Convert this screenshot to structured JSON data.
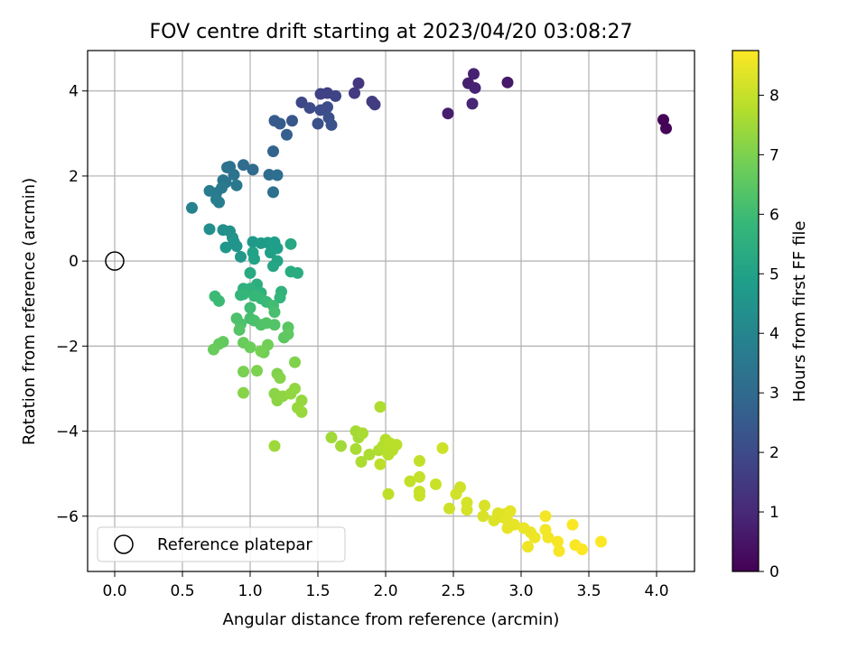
{
  "chart_data": {
    "type": "scatter",
    "title": "FOV centre drift starting at 2023/04/20 03:08:27",
    "xlabel": "Angular distance from reference (arcmin)",
    "ylabel": "Rotation from reference (arcmin)",
    "xlim": [
      -0.2,
      4.28
    ],
    "ylim": [
      -7.3,
      4.95
    ],
    "xticks": [
      0.0,
      0.5,
      1.0,
      1.5,
      2.0,
      2.5,
      3.0,
      3.5,
      4.0
    ],
    "xtick_labels": [
      "0.0",
      "0.5",
      "1.0",
      "1.5",
      "2.0",
      "2.5",
      "3.0",
      "3.5",
      "4.0"
    ],
    "yticks": [
      -6,
      -4,
      -2,
      0,
      2,
      4
    ],
    "ytick_labels": [
      "−6",
      "−4",
      "−2",
      "0",
      "2",
      "4"
    ],
    "grid": true,
    "legend": {
      "placement": "lower-left",
      "entries": [
        "Reference platepar"
      ]
    },
    "reference_point": {
      "x": 0.0,
      "y": 0.0,
      "name": "Reference platepar"
    },
    "colorbar": {
      "label": "Hours from first FF file",
      "range": [
        0,
        8.75
      ],
      "ticks": [
        0,
        1,
        2,
        3,
        4,
        5,
        6,
        7,
        8
      ],
      "tick_labels": [
        "0",
        "1",
        "2",
        "3",
        "4",
        "5",
        "6",
        "7",
        "8"
      ],
      "colormap": "viridis",
      "colors": [
        "#440154",
        "#482878",
        "#3e4989",
        "#31688e",
        "#26828e",
        "#1f9e89",
        "#35b779",
        "#6ece58",
        "#b5de2b",
        "#fde725"
      ]
    },
    "points": [
      [
        4.05,
        3.32,
        0.05
      ],
      [
        4.07,
        3.12,
        0.1
      ],
      [
        2.46,
        3.47,
        0.7
      ],
      [
        2.61,
        4.18,
        0.75
      ],
      [
        2.65,
        4.4,
        0.8
      ],
      [
        2.66,
        4.07,
        0.85
      ],
      [
        2.64,
        3.7,
        0.9
      ],
      [
        2.9,
        4.2,
        0.6
      ],
      [
        1.8,
        4.18,
        1.4
      ],
      [
        1.77,
        3.95,
        1.5
      ],
      [
        1.9,
        3.75,
        1.55
      ],
      [
        1.92,
        3.68,
        1.6
      ],
      [
        1.52,
        3.93,
        1.7
      ],
      [
        1.57,
        3.95,
        1.75
      ],
      [
        1.63,
        3.88,
        1.8
      ],
      [
        1.38,
        3.73,
        1.9
      ],
      [
        1.44,
        3.6,
        2.0
      ],
      [
        1.52,
        3.55,
        2.05
      ],
      [
        1.57,
        3.62,
        2.1
      ],
      [
        1.58,
        3.37,
        2.15
      ],
      [
        1.5,
        3.23,
        2.2
      ],
      [
        1.6,
        3.2,
        2.25
      ],
      [
        1.31,
        3.3,
        2.35
      ],
      [
        1.18,
        3.3,
        2.5
      ],
      [
        1.22,
        3.23,
        2.55
      ],
      [
        1.27,
        2.97,
        2.65
      ],
      [
        1.17,
        2.58,
        2.8
      ],
      [
        1.02,
        2.15,
        3.0
      ],
      [
        0.95,
        2.26,
        3.05
      ],
      [
        1.14,
        2.03,
        3.1
      ],
      [
        1.2,
        2.02,
        3.15
      ],
      [
        1.17,
        1.62,
        3.2
      ],
      [
        0.83,
        2.2,
        3.25
      ],
      [
        0.85,
        2.22,
        3.3
      ],
      [
        0.88,
        2.03,
        3.35
      ],
      [
        0.8,
        1.9,
        3.4
      ],
      [
        0.82,
        1.85,
        3.45
      ],
      [
        0.9,
        1.78,
        3.5
      ],
      [
        0.79,
        1.72,
        3.55
      ],
      [
        0.75,
        1.6,
        3.6
      ],
      [
        0.7,
        1.65,
        3.65
      ],
      [
        0.75,
        1.45,
        3.7
      ],
      [
        0.77,
        1.38,
        3.75
      ],
      [
        0.57,
        1.25,
        3.9
      ],
      [
        0.7,
        0.75,
        4.3
      ],
      [
        0.8,
        0.73,
        4.35
      ],
      [
        0.85,
        0.7,
        4.4
      ],
      [
        0.87,
        0.55,
        4.45
      ],
      [
        0.88,
        0.45,
        4.5
      ],
      [
        0.9,
        0.35,
        4.55
      ],
      [
        0.82,
        0.32,
        4.6
      ],
      [
        0.93,
        0.1,
        4.65
      ],
      [
        1.02,
        0.45,
        4.7
      ],
      [
        1.08,
        0.42,
        4.75
      ],
      [
        1.13,
        0.43,
        4.8
      ],
      [
        1.18,
        0.44,
        4.85
      ],
      [
        1.2,
        0.3,
        4.9
      ],
      [
        1.15,
        0.2,
        4.95
      ],
      [
        1.02,
        0.2,
        5.0
      ],
      [
        1.03,
        0.05,
        5.05
      ],
      [
        1.2,
        0.0,
        5.1
      ],
      [
        1.17,
        -0.12,
        5.15
      ],
      [
        1.3,
        0.4,
        5.2
      ],
      [
        1.0,
        -0.28,
        5.3
      ],
      [
        1.3,
        -0.25,
        5.35
      ],
      [
        1.35,
        -0.28,
        5.4
      ],
      [
        1.05,
        -0.55,
        5.5
      ],
      [
        0.95,
        -0.65,
        5.55
      ],
      [
        1.0,
        -0.65,
        5.6
      ],
      [
        1.08,
        -0.75,
        5.6
      ],
      [
        1.23,
        -0.72,
        5.65
      ],
      [
        1.22,
        -0.86,
        5.7
      ],
      [
        0.95,
        -0.78,
        5.75
      ],
      [
        0.93,
        -0.8,
        5.8
      ],
      [
        1.03,
        -0.82,
        5.85
      ],
      [
        1.08,
        -0.88,
        5.85
      ],
      [
        1.12,
        -0.96,
        5.9
      ],
      [
        0.77,
        -0.94,
        5.95
      ],
      [
        0.74,
        -0.83,
        5.95
      ],
      [
        1.0,
        -1.1,
        6.0
      ],
      [
        1.17,
        -1.05,
        6.05
      ],
      [
        1.0,
        -1.35,
        6.1
      ],
      [
        1.18,
        -1.2,
        6.15
      ],
      [
        1.03,
        -1.4,
        6.2
      ],
      [
        0.9,
        -1.35,
        6.25
      ],
      [
        0.93,
        -1.48,
        6.25
      ],
      [
        1.08,
        -1.5,
        6.3
      ],
      [
        1.18,
        -1.5,
        6.35
      ],
      [
        1.12,
        -1.46,
        6.35
      ],
      [
        0.92,
        -1.62,
        6.4
      ],
      [
        1.28,
        -1.56,
        6.45
      ],
      [
        1.25,
        -1.8,
        6.5
      ],
      [
        1.28,
        -1.72,
        6.55
      ],
      [
        0.8,
        -1.9,
        6.6
      ],
      [
        0.77,
        -1.95,
        6.65
      ],
      [
        0.73,
        -2.08,
        6.7
      ],
      [
        0.95,
        -1.92,
        6.7
      ],
      [
        1.0,
        -2.03,
        6.75
      ],
      [
        1.1,
        -2.15,
        6.8
      ],
      [
        1.13,
        -1.97,
        6.85
      ],
      [
        1.08,
        -2.12,
        6.9
      ],
      [
        0.95,
        -2.6,
        6.95
      ],
      [
        1.05,
        -2.58,
        7.0
      ],
      [
        1.33,
        -2.38,
        7.05
      ],
      [
        1.2,
        -2.65,
        7.05
      ],
      [
        1.22,
        -2.75,
        7.1
      ],
      [
        0.95,
        -3.1,
        7.15
      ],
      [
        1.18,
        -3.12,
        7.2
      ],
      [
        1.2,
        -3.28,
        7.2
      ],
      [
        1.24,
        -3.18,
        7.25
      ],
      [
        1.3,
        -3.12,
        7.3
      ],
      [
        1.33,
        -3.0,
        7.3
      ],
      [
        1.38,
        -3.28,
        7.35
      ],
      [
        1.35,
        -3.45,
        7.35
      ],
      [
        1.38,
        -3.55,
        7.4
      ],
      [
        1.18,
        -4.35,
        7.45
      ],
      [
        1.6,
        -4.15,
        7.5
      ],
      [
        1.67,
        -4.35,
        7.5
      ],
      [
        1.78,
        -4.0,
        7.55
      ],
      [
        1.8,
        -4.15,
        7.55
      ],
      [
        1.83,
        -4.05,
        7.6
      ],
      [
        1.78,
        -4.42,
        7.6
      ],
      [
        1.82,
        -4.72,
        7.65
      ],
      [
        1.88,
        -4.55,
        7.65
      ],
      [
        1.95,
        -4.45,
        7.7
      ],
      [
        1.96,
        -3.43,
        7.7
      ],
      [
        1.98,
        -4.35,
        7.75
      ],
      [
        2.0,
        -4.2,
        7.75
      ],
      [
        2.02,
        -4.55,
        7.8
      ],
      [
        2.05,
        -4.45,
        7.8
      ],
      [
        2.03,
        -4.28,
        7.85
      ],
      [
        2.08,
        -4.32,
        7.85
      ],
      [
        1.96,
        -4.78,
        7.9
      ],
      [
        2.02,
        -5.48,
        7.9
      ],
      [
        2.18,
        -5.18,
        7.95
      ],
      [
        2.25,
        -4.7,
        7.95
      ],
      [
        2.25,
        -5.08,
        8.0
      ],
      [
        2.25,
        -5.42,
        8.0
      ],
      [
        2.25,
        -5.52,
        8.05
      ],
      [
        2.37,
        -5.25,
        8.05
      ],
      [
        2.42,
        -4.4,
        8.1
      ],
      [
        2.47,
        -5.82,
        8.1
      ],
      [
        2.52,
        -5.48,
        8.15
      ],
      [
        2.55,
        -5.32,
        8.15
      ],
      [
        2.6,
        -5.68,
        8.2
      ],
      [
        2.6,
        -5.85,
        8.2
      ],
      [
        2.73,
        -5.75,
        8.25
      ],
      [
        2.72,
        -6.0,
        8.25
      ],
      [
        2.8,
        -6.1,
        8.3
      ],
      [
        2.83,
        -5.93,
        8.3
      ],
      [
        2.85,
        -6.02,
        8.35
      ],
      [
        2.88,
        -5.95,
        8.35
      ],
      [
        2.9,
        -6.1,
        8.4
      ],
      [
        2.92,
        -5.88,
        8.4
      ],
      [
        2.9,
        -6.28,
        8.45
      ],
      [
        2.95,
        -6.2,
        8.45
      ],
      [
        3.02,
        -6.28,
        8.5
      ],
      [
        3.07,
        -6.38,
        8.5
      ],
      [
        3.1,
        -6.5,
        8.55
      ],
      [
        3.05,
        -6.72,
        8.55
      ],
      [
        3.18,
        -6.32,
        8.6
      ],
      [
        3.18,
        -6.0,
        8.6
      ],
      [
        3.2,
        -6.5,
        8.6
      ],
      [
        3.27,
        -6.6,
        8.65
      ],
      [
        3.28,
        -6.82,
        8.65
      ],
      [
        3.38,
        -6.2,
        8.7
      ],
      [
        3.4,
        -6.68,
        8.7
      ],
      [
        3.45,
        -6.78,
        8.72
      ],
      [
        3.59,
        -6.6,
        8.75
      ]
    ]
  }
}
